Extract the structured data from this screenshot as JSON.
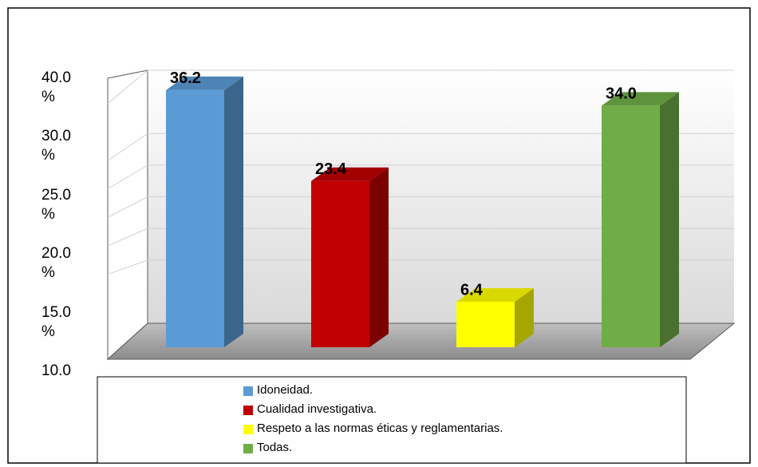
{
  "chart_data": {
    "type": "bar3d",
    "categories": [
      "Idoneidad.",
      "Cualidad investigativa.",
      "Respeto a las normas éticas y reglamentarias.",
      "Todas."
    ],
    "values": [
      36.2,
      23.4,
      6.4,
      34.0
    ],
    "value_labels": [
      "36.2",
      "23.4",
      "6.4",
      "34.0"
    ],
    "colors": [
      "#5b9bd5",
      "#c00000",
      "#ffff00",
      "#70ad47"
    ],
    "ylim": [
      0,
      40
    ],
    "yticks": [
      {
        "value": 40,
        "label": "40.0 %"
      },
      {
        "value": 30,
        "label": "30.0 %"
      },
      {
        "value": 25,
        "label": "25.0 %"
      },
      {
        "value": 20,
        "label": "20.0 %"
      },
      {
        "value": 15,
        "label": "15.0 %"
      },
      {
        "value": 10,
        "label": "10.0"
      }
    ],
    "grid": true,
    "legend": "bottom"
  }
}
